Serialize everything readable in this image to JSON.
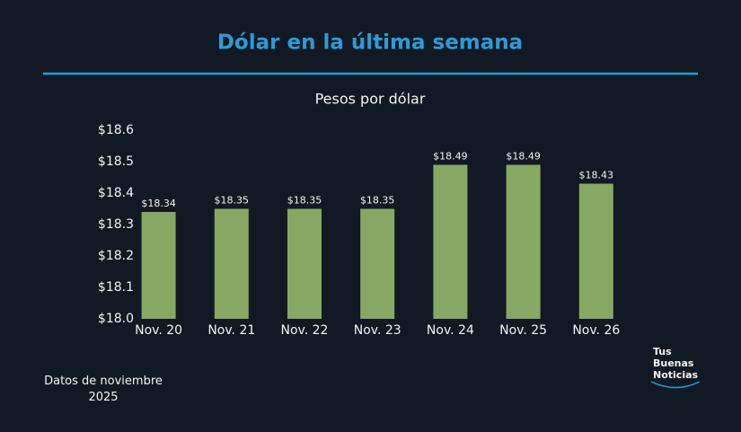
{
  "chart_data": {
    "type": "bar",
    "title": "Dólar en la última semana",
    "subtitle": "Pesos por dólar",
    "categories": [
      "Nov. 20",
      "Nov. 21",
      "Nov. 22",
      "Nov. 23",
      "Nov. 24",
      "Nov. 25",
      "Nov. 26"
    ],
    "values": [
      18.34,
      18.35,
      18.35,
      18.35,
      18.49,
      18.49,
      18.43
    ],
    "value_labels": [
      "$18.34",
      "$18.35",
      "$18.35",
      "$18.35",
      "$18.49",
      "$18.49",
      "$18.43"
    ],
    "color": "#87a862",
    "ylim": [
      18.0,
      18.6
    ],
    "yticks": [
      {
        "value": 18.0,
        "label": "$18.0"
      },
      {
        "value": 18.1,
        "label": "$18.1"
      },
      {
        "value": 18.2,
        "label": "$18.2"
      },
      {
        "value": 18.3,
        "label": "$18.3"
      },
      {
        "value": 18.4,
        "label": "$18.4"
      },
      {
        "value": 18.5,
        "label": "$18.5"
      },
      {
        "value": 18.6,
        "label": "$18.6"
      }
    ],
    "grid": false,
    "note": "Datos de noviembre 2025"
  },
  "logo": [
    "Tus",
    "Buenas",
    "Noticias"
  ]
}
